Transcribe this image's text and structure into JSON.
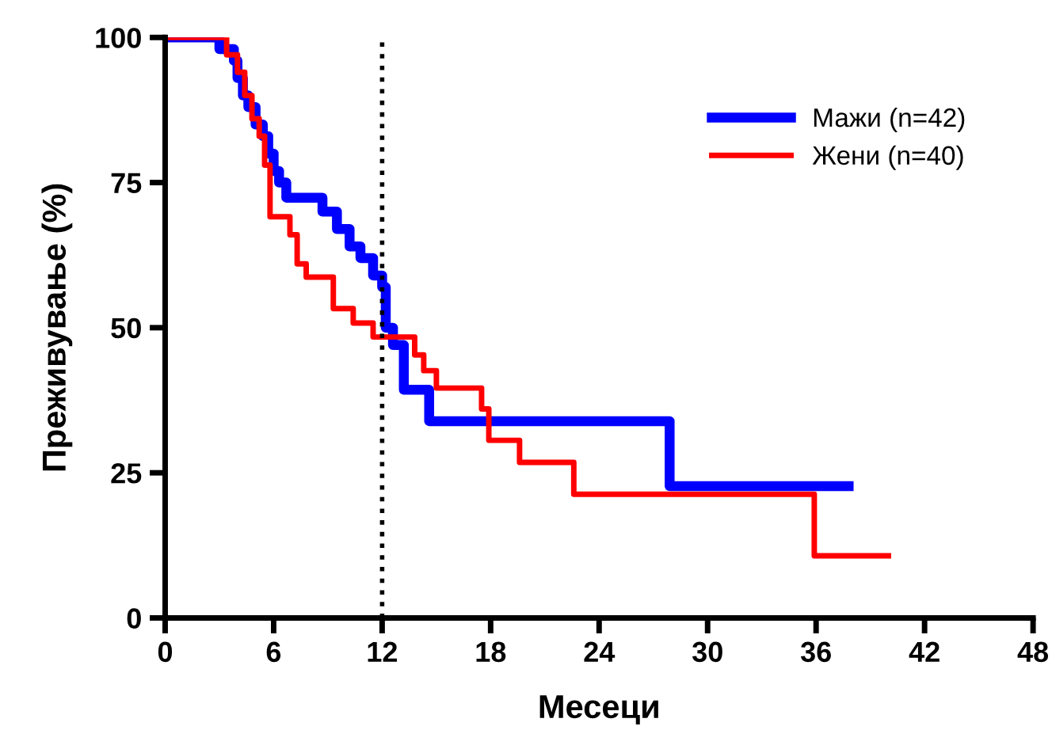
{
  "chart_data": {
    "type": "step",
    "xlabel": "Месеци",
    "ylabel": "Преживување (%)",
    "xlim": [
      0,
      48
    ],
    "ylim": [
      0,
      100
    ],
    "xticks": [
      0,
      6,
      12,
      18,
      24,
      30,
      36,
      42,
      48
    ],
    "yticks": [
      0,
      25,
      50,
      75,
      100
    ],
    "grid": false,
    "legend": "top right",
    "line_style": "solid",
    "ref_lines": [
      {
        "axis": "x",
        "value": 12,
        "color": "#000000",
        "line_style": "dotted"
      }
    ],
    "series": [
      {
        "name": "Мажи (n=42)",
        "color": "#0000ff",
        "x": [
          0,
          3,
          3.8,
          4,
          4.3,
          4.6,
          5,
          5.4,
          5.7,
          6,
          6.3,
          6.7,
          8.7,
          9.5,
          10.2,
          10.8,
          11.5,
          12,
          12.2,
          12.6,
          13.2,
          14.6,
          27.9,
          37.8
        ],
        "values": [
          100,
          98,
          96,
          93,
          90,
          88,
          85,
          83,
          80,
          77,
          75,
          72.4,
          70,
          67,
          64,
          62,
          59,
          57,
          50,
          47,
          39.3,
          33.9,
          22.7,
          22.7
        ]
      },
      {
        "name": "Жени (n=40)",
        "color": "#ff0000",
        "x": [
          0,
          3.4,
          4,
          4.4,
          4.8,
          5.2,
          5.5,
          5.8,
          6.9,
          7.3,
          7.8,
          9.3,
          10.4,
          11.5,
          13.8,
          14.3,
          15,
          17.5,
          17.9,
          19.6,
          22.6,
          35.9,
          40
        ],
        "values": [
          100,
          97,
          94,
          90,
          86,
          83,
          78,
          69.1,
          66,
          61,
          58.7,
          53.3,
          50.8,
          48.4,
          45.3,
          42.6,
          39.6,
          36,
          30.6,
          26.8,
          21.3,
          10.7,
          10.7
        ]
      }
    ]
  }
}
